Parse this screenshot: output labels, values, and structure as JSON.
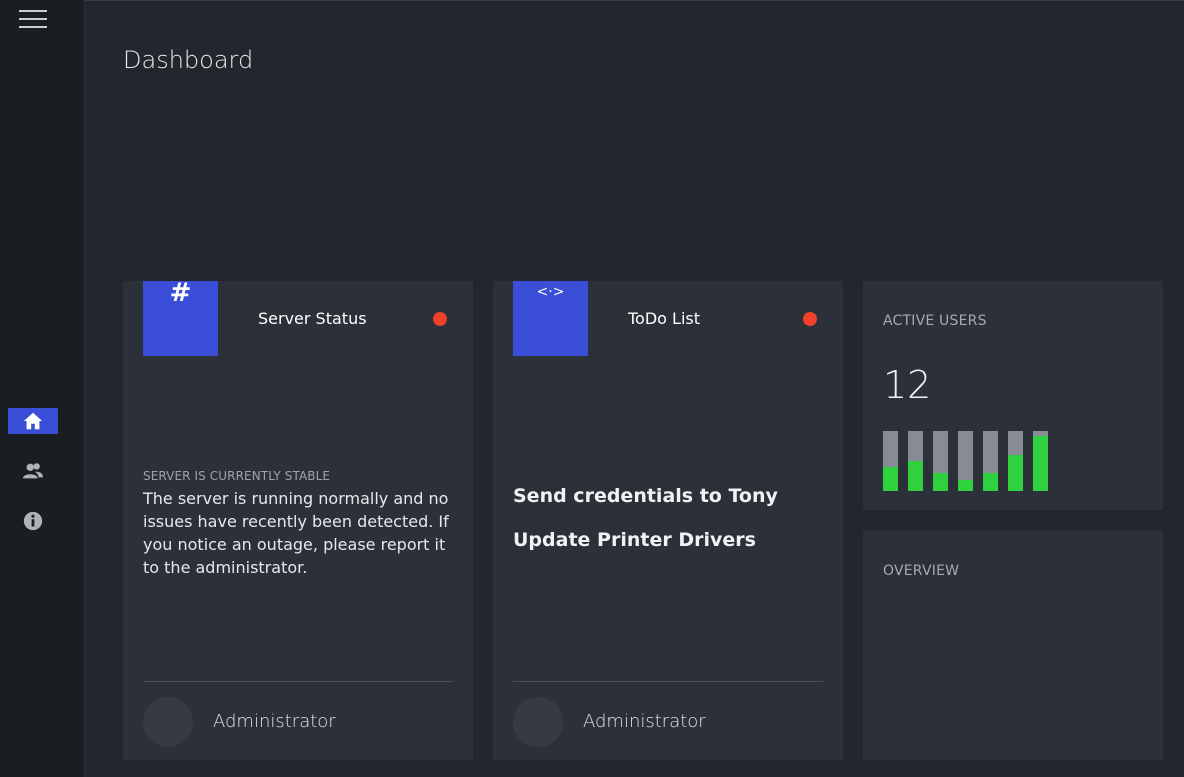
{
  "page": {
    "title": "Dashboard"
  },
  "sidebar": {
    "menu_icon": "menu-icon",
    "items": [
      {
        "icon": "home-icon",
        "active": true
      },
      {
        "icon": "users-icon",
        "active": false
      },
      {
        "icon": "info-icon",
        "active": false
      }
    ]
  },
  "server_card": {
    "icon": "#",
    "title": "Server Status",
    "status_color": "#f0412b",
    "status_label": "SERVER IS CURRENTLY STABLE",
    "status_text": "The server is running normally and no issues have recently been detected. If you notice an outage, please report it to the administrator.",
    "author": "Administrator"
  },
  "todo_card": {
    "icon": "<·>",
    "title": "ToDo List",
    "status_color": "#f0412b",
    "items": [
      "Send credentials to Tony",
      "Update Printer Drivers"
    ],
    "author": "Administrator"
  },
  "active_users": {
    "title": "ACTIVE USERS",
    "count": "12",
    "bars": [
      0.4,
      0.5,
      0.3,
      0.18,
      0.3,
      0.6,
      0.92
    ]
  },
  "overview": {
    "title": "OVERVIEW"
  },
  "colors": {
    "accent": "#3a4ed8",
    "alert": "#f0412b",
    "bar_fill": "#2fd13e",
    "bar_bg": "#868b94"
  }
}
